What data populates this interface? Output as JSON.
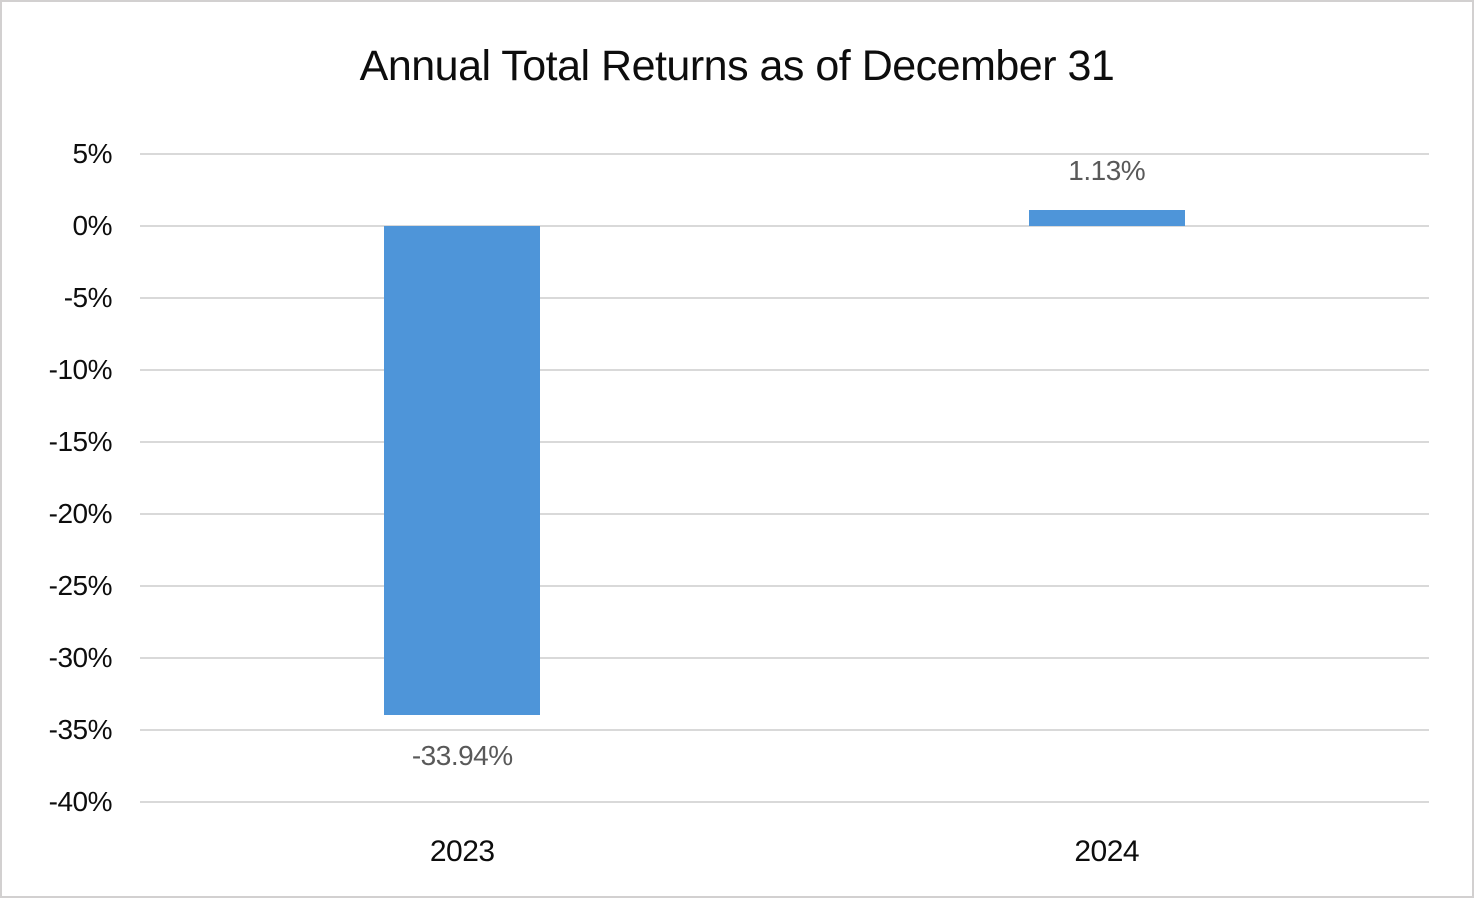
{
  "chart_data": {
    "type": "bar",
    "title": "Annual Total Returns as of December 31",
    "categories": [
      "2023",
      "2024"
    ],
    "values": [
      -33.94,
      1.13
    ],
    "data_labels": [
      "-33.94%",
      "1.13%"
    ],
    "xlabel": "",
    "ylabel": "",
    "ylim": [
      -40,
      5
    ],
    "ytick_step": 5,
    "ytick_labels": [
      "5%",
      "0%",
      "-5%",
      "-10%",
      "-15%",
      "-20%",
      "-25%",
      "-30%",
      "-35%",
      "-40%"
    ],
    "grid": true,
    "legend": "none",
    "colors": {
      "bar": "#4E95D9",
      "gridline": "#D9D9D9",
      "data_label": "#595959",
      "axis_text": "#0D0D0D",
      "title": "#0D0D0D",
      "border": "#D2D0D0",
      "background": "#FFFFFF"
    }
  }
}
